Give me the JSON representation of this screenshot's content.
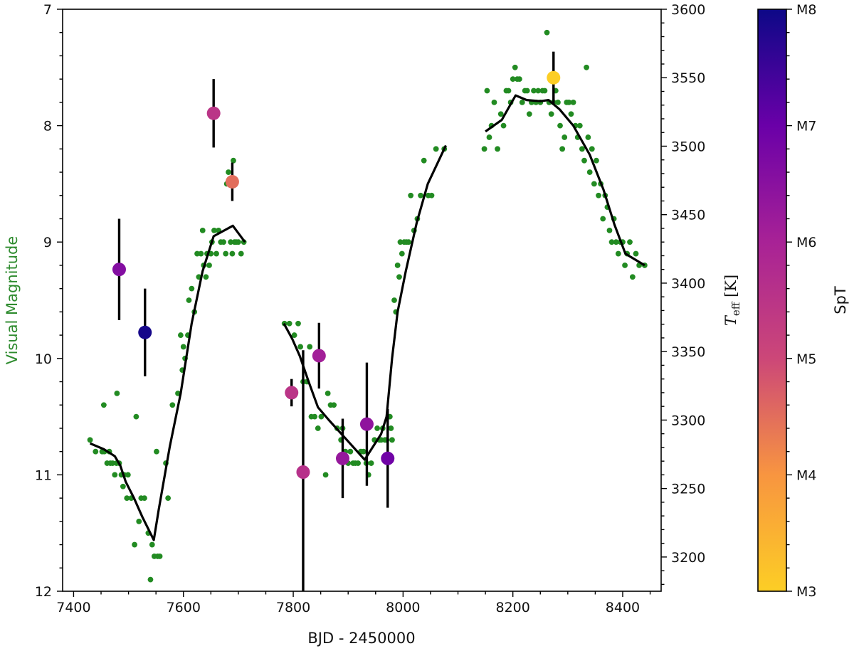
{
  "chart_data": {
    "type": "scatter",
    "xlabel": "BJD - 2450000",
    "ylabel_left": "Visual Magnitude",
    "ylabel_right": "T_eff [K]",
    "colorbar_label": "SpT",
    "xlim": [
      7380,
      8470
    ],
    "ylim_left": [
      12,
      7
    ],
    "ylim_right": [
      3175,
      3600
    ],
    "x_ticks": [
      7400,
      7600,
      7800,
      8000,
      8200,
      8400
    ],
    "y_left_ticks": [
      7,
      8,
      9,
      10,
      11,
      12
    ],
    "y_right_ticks": [
      3200,
      3250,
      3300,
      3350,
      3400,
      3450,
      3500,
      3550,
      3600
    ],
    "colorbar_ticks": [
      "M3",
      "M4",
      "M5",
      "M6",
      "M7",
      "M8"
    ],
    "colors": {
      "visual": "#228b22",
      "line": "#000000",
      "left_label": "#2e8b2e"
    },
    "series": [
      {
        "kind": "visual-points",
        "points": [
          [
            7430,
            10.7
          ],
          [
            7440,
            10.8
          ],
          [
            7452,
            10.8
          ],
          [
            7455,
            10.4
          ],
          [
            7456,
            10.8
          ],
          [
            7461,
            10.9
          ],
          [
            7465,
            10.8
          ],
          [
            7467,
            10.9
          ],
          [
            7471,
            10.9
          ],
          [
            7475,
            11.0
          ],
          [
            7478,
            10.9
          ],
          [
            7479,
            10.3
          ],
          [
            7483,
            10.9
          ],
          [
            7487,
            11.0
          ],
          [
            7490,
            11.1
          ],
          [
            7492,
            11.0
          ],
          [
            7497,
            11.2
          ],
          [
            7499,
            11.0
          ],
          [
            7505,
            11.2
          ],
          [
            7511,
            11.6
          ],
          [
            7514,
            10.5
          ],
          [
            7519,
            11.4
          ],
          [
            7523,
            11.2
          ],
          [
            7529,
            11.2
          ],
          [
            7536,
            11.5
          ],
          [
            7540,
            11.9
          ],
          [
            7543,
            11.6
          ],
          [
            7547,
            11.7
          ],
          [
            7551,
            10.8
          ],
          [
            7553,
            11.7
          ],
          [
            7557,
            11.7
          ],
          [
            7568,
            10.9
          ],
          [
            7572,
            11.2
          ],
          [
            7580,
            10.4
          ],
          [
            7590,
            10.3
          ],
          [
            7595,
            9.8
          ],
          [
            7598,
            10.1
          ],
          [
            7600,
            9.9
          ],
          [
            7603,
            10.0
          ],
          [
            7608,
            9.8
          ],
          [
            7610,
            9.5
          ],
          [
            7615,
            9.4
          ],
          [
            7620,
            9.6
          ],
          [
            7625,
            9.1
          ],
          [
            7628,
            9.3
          ],
          [
            7632,
            9.1
          ],
          [
            7635,
            8.9
          ],
          [
            7637,
            9.2
          ],
          [
            7641,
            9.3
          ],
          [
            7643,
            9.1
          ],
          [
            7647,
            9.2
          ],
          [
            7650,
            9.1
          ],
          [
            7652,
            9.0
          ],
          [
            7656,
            8.9
          ],
          [
            7660,
            9.1
          ],
          [
            7664,
            8.9
          ],
          [
            7668,
            9.0
          ],
          [
            7673,
            9.0
          ],
          [
            7677,
            9.1
          ],
          [
            7679,
            8.5
          ],
          [
            7682,
            8.4
          ],
          [
            7686,
            9.0
          ],
          [
            7689,
            9.1
          ],
          [
            7691,
            8.3
          ],
          [
            7693,
            9.0
          ],
          [
            7696,
            9.0
          ],
          [
            7700,
            9.0
          ],
          [
            7705,
            9.1
          ],
          [
            7710,
            9.0
          ],
          [
            7784,
            9.7
          ],
          [
            7793,
            9.7
          ],
          [
            7802,
            9.8
          ],
          [
            7809,
            9.7
          ],
          [
            7813,
            9.9
          ],
          [
            7818,
            10.2
          ],
          [
            7825,
            10.2
          ],
          [
            7830,
            9.9
          ],
          [
            7833,
            10.5
          ],
          [
            7839,
            10.5
          ],
          [
            7845,
            10.6
          ],
          [
            7851,
            10.5
          ],
          [
            7859,
            11.0
          ],
          [
            7863,
            10.3
          ],
          [
            7868,
            10.4
          ],
          [
            7874,
            10.4
          ],
          [
            7880,
            10.6
          ],
          [
            7887,
            10.7
          ],
          [
            7890,
            10.6
          ],
          [
            7895,
            10.8
          ],
          [
            7900,
            10.9
          ],
          [
            7904,
            10.8
          ],
          [
            7909,
            10.9
          ],
          [
            7913,
            10.9
          ],
          [
            7918,
            10.9
          ],
          [
            7923,
            10.8
          ],
          [
            7928,
            10.8
          ],
          [
            7933,
            10.9
          ],
          [
            7937,
            11.0
          ],
          [
            7942,
            10.9
          ],
          [
            7948,
            10.7
          ],
          [
            7953,
            10.6
          ],
          [
            7957,
            10.7
          ],
          [
            7960,
            10.7
          ],
          [
            7963,
            10.6
          ],
          [
            7967,
            10.7
          ],
          [
            7970,
            10.7
          ],
          [
            7973,
            10.5
          ],
          [
            7976,
            10.5
          ],
          [
            7978,
            10.6
          ],
          [
            7980,
            10.7
          ],
          [
            7984,
            9.5
          ],
          [
            7987,
            9.6
          ],
          [
            7990,
            9.2
          ],
          [
            7993,
            9.3
          ],
          [
            7995,
            9.0
          ],
          [
            7998,
            9.1
          ],
          [
            8002,
            9.0
          ],
          [
            8006,
            9.0
          ],
          [
            8010,
            9.0
          ],
          [
            8014,
            8.6
          ],
          [
            8020,
            8.9
          ],
          [
            8026,
            8.8
          ],
          [
            8032,
            8.6
          ],
          [
            8038,
            8.3
          ],
          [
            8046,
            8.6
          ],
          [
            8052,
            8.6
          ],
          [
            8060,
            8.2
          ],
          [
            8075,
            8.2
          ],
          [
            8148,
            8.2
          ],
          [
            8153,
            7.7
          ],
          [
            8157,
            8.1
          ],
          [
            8161,
            8.0
          ],
          [
            8166,
            7.8
          ],
          [
            8172,
            8.2
          ],
          [
            8178,
            7.9
          ],
          [
            8183,
            8.0
          ],
          [
            8188,
            7.7
          ],
          [
            8192,
            7.7
          ],
          [
            8196,
            7.8
          ],
          [
            8200,
            7.6
          ],
          [
            8204,
            7.5
          ],
          [
            8208,
            7.6
          ],
          [
            8212,
            7.6
          ],
          [
            8217,
            7.8
          ],
          [
            8222,
            7.7
          ],
          [
            8226,
            7.7
          ],
          [
            8230,
            7.9
          ],
          [
            8234,
            7.8
          ],
          [
            8238,
            7.7
          ],
          [
            8242,
            7.8
          ],
          [
            8246,
            7.7
          ],
          [
            8250,
            7.8
          ],
          [
            8254,
            7.7
          ],
          [
            8258,
            7.7
          ],
          [
            8262,
            7.2
          ],
          [
            8266,
            7.8
          ],
          [
            8270,
            7.9
          ],
          [
            8274,
            7.8
          ],
          [
            8278,
            7.7
          ],
          [
            8282,
            7.8
          ],
          [
            8286,
            8.0
          ],
          [
            8290,
            8.2
          ],
          [
            8294,
            8.1
          ],
          [
            8298,
            7.8
          ],
          [
            8302,
            7.8
          ],
          [
            8306,
            7.9
          ],
          [
            8310,
            7.8
          ],
          [
            8314,
            8.0
          ],
          [
            8318,
            8.1
          ],
          [
            8322,
            8.0
          ],
          [
            8326,
            8.2
          ],
          [
            8330,
            8.3
          ],
          [
            8334,
            7.5
          ],
          [
            8337,
            8.1
          ],
          [
            8340,
            8.4
          ],
          [
            8344,
            8.2
          ],
          [
            8348,
            8.5
          ],
          [
            8352,
            8.3
          ],
          [
            8356,
            8.6
          ],
          [
            8360,
            8.5
          ],
          [
            8364,
            8.8
          ],
          [
            8368,
            8.6
          ],
          [
            8372,
            8.7
          ],
          [
            8376,
            8.9
          ],
          [
            8380,
            9.0
          ],
          [
            8384,
            8.8
          ],
          [
            8388,
            9.0
          ],
          [
            8392,
            9.1
          ],
          [
            8396,
            9.0
          ],
          [
            8400,
            9.0
          ],
          [
            8404,
            9.2
          ],
          [
            8408,
            9.1
          ],
          [
            8413,
            9.0
          ],
          [
            8418,
            9.3
          ],
          [
            8424,
            9.1
          ],
          [
            8430,
            9.2
          ],
          [
            8440,
            9.2
          ]
        ]
      },
      {
        "kind": "visual-trend-line",
        "segments": [
          [
            [
              7430,
              10.73
            ],
            [
              7455,
              10.78
            ],
            [
              7465,
              10.81
            ],
            [
              7475,
              10.84
            ],
            [
              7485,
              10.92
            ],
            [
              7495,
              11.06
            ],
            [
              7510,
              11.2
            ],
            [
              7525,
              11.36
            ],
            [
              7546,
              11.56
            ],
            [
              7555,
              11.3
            ],
            [
              7575,
              10.76
            ],
            [
              7595,
              10.3
            ],
            [
              7615,
              9.7
            ],
            [
              7635,
              9.25
            ],
            [
              7655,
              8.95
            ],
            [
              7690,
              8.86
            ],
            [
              7712,
              9.0
            ]
          ],
          [
            [
              7783,
              9.7
            ],
            [
              7798,
              9.83
            ],
            [
              7812,
              9.98
            ],
            [
              7828,
              10.2
            ],
            [
              7845,
              10.42
            ],
            [
              7865,
              10.53
            ],
            [
              7890,
              10.66
            ],
            [
              7930,
              10.87
            ],
            [
              7960,
              10.65
            ],
            [
              7970,
              10.5
            ],
            [
              7980,
              10.0
            ],
            [
              7990,
              9.6
            ],
            [
              8005,
              9.25
            ],
            [
              8025,
              8.83
            ],
            [
              8045,
              8.5
            ],
            [
              8078,
              8.17
            ]
          ],
          [
            [
              8150,
              8.05
            ],
            [
              8180,
              7.95
            ],
            [
              8205,
              7.74
            ],
            [
              8225,
              7.78
            ],
            [
              8250,
              7.79
            ],
            [
              8265,
              7.78
            ],
            [
              8285,
              7.86
            ],
            [
              8310,
              8.0
            ],
            [
              8340,
              8.25
            ],
            [
              8365,
              8.55
            ],
            [
              8385,
              8.85
            ],
            [
              8405,
              9.1
            ],
            [
              8440,
              9.2
            ]
          ]
        ]
      },
      {
        "kind": "teff-points",
        "points": [
          {
            "x": 7483,
            "teff": 3410,
            "err": 37,
            "spt": 6.6
          },
          {
            "x": 7530,
            "teff": 3364,
            "err": 32,
            "spt": 7.9
          },
          {
            "x": 7655,
            "teff": 3524,
            "err": 25,
            "spt": 5.5
          },
          {
            "x": 7689,
            "teff": 3474,
            "err": 14,
            "spt": 4.5
          },
          {
            "x": 7797,
            "teff": 3320,
            "err": 10,
            "spt": 5.5
          },
          {
            "x": 7818,
            "teff": 3262,
            "err": 89,
            "spt": 5.6
          },
          {
            "x": 7847,
            "teff": 3347,
            "err": 24,
            "spt": 6.1
          },
          {
            "x": 7890,
            "teff": 3272,
            "err": 29,
            "spt": 6.3
          },
          {
            "x": 7934,
            "teff": 3297,
            "err": 45,
            "spt": 6.4
          },
          {
            "x": 7972,
            "teff": 3272,
            "err": 36,
            "spt": 6.9
          },
          {
            "x": 8274,
            "teff": 3550,
            "err": 19,
            "spt": 3.0
          }
        ]
      }
    ]
  }
}
